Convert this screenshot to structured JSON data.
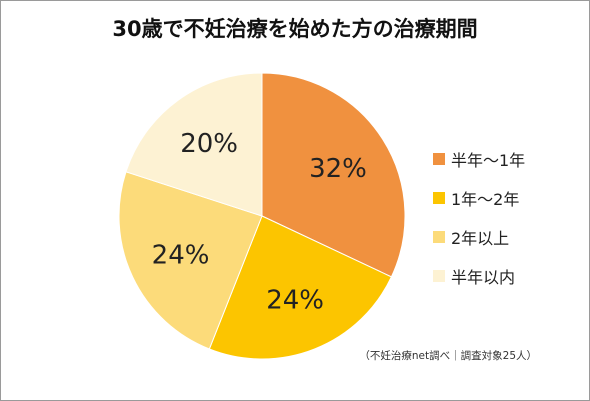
{
  "chart_data": {
    "type": "pie",
    "title": "30歳で不妊治療を始めた方の治療期間",
    "categories": [
      "半年～1年",
      "1年～2年",
      "2年以上",
      "半年以内"
    ],
    "values": [
      32,
      24,
      24,
      20
    ],
    "labels": [
      "32%",
      "24%",
      "24%",
      "20%"
    ],
    "colors": [
      "#f0913f",
      "#fcc500",
      "#fcdb7a",
      "#fdf2d3"
    ],
    "legend_position": "right",
    "note": "（不妊治療net調べ｜調査対象25人）"
  }
}
